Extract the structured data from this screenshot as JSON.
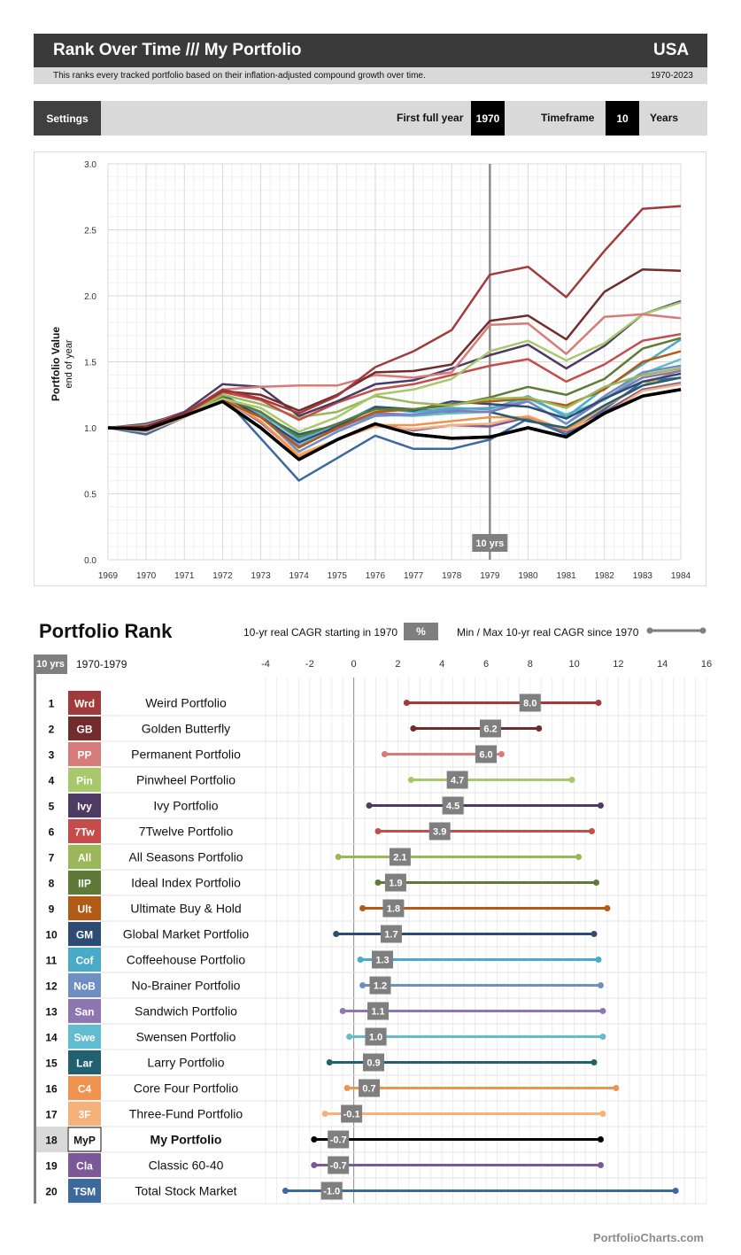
{
  "header": {
    "title": "Rank Over Time /// My Portfolio",
    "country": "USA",
    "subtitle": "This ranks every tracked portfolio based on their inflation-adjusted compound growth over time.",
    "years": "1970-2023"
  },
  "settings": {
    "button_label": "Settings",
    "first_year_label": "First full year",
    "first_year_value": "1970",
    "timeframe_label": "Timeframe",
    "timeframe_value": "10",
    "years_label": "Years"
  },
  "rank_section": {
    "title": "Portfolio Rank",
    "cagr_label": "10-yr real CAGR starting in 1970",
    "pct_badge": "%",
    "minmax_label": "Min / Max 10-yr real CAGR since 1970",
    "period_badge": "10 yrs",
    "period_range": "1970-1979"
  },
  "footer": "PortfolioCharts.com",
  "chart_data": [
    {
      "type": "line",
      "ylabel": "Portfolio Value",
      "ylabel_sub": "end of year",
      "ylim": [
        0,
        3.0
      ],
      "yticks": [
        "0.0",
        "0.5",
        "1.0",
        "1.5",
        "2.0",
        "2.5",
        "3.0"
      ],
      "x": [
        "1969",
        "1970",
        "1971",
        "1972",
        "1973",
        "1974",
        "1975",
        "1976",
        "1977",
        "1978",
        "1979",
        "1980",
        "1981",
        "1982",
        "1983",
        "1984"
      ],
      "marker": {
        "x": "1979",
        "label": "10 yrs"
      },
      "grid": true,
      "series": [
        {
          "name": "Wrd",
          "color": "#a13b3b",
          "width": 2.5,
          "values": [
            1.0,
            0.99,
            1.1,
            1.29,
            1.22,
            1.11,
            1.24,
            1.46,
            1.58,
            1.74,
            2.16,
            2.22,
            1.99,
            2.34,
            2.66,
            2.68
          ]
        },
        {
          "name": "GB",
          "color": "#732c2c",
          "width": 2.5,
          "values": [
            1.0,
            1.01,
            1.11,
            1.28,
            1.25,
            1.13,
            1.25,
            1.42,
            1.43,
            1.48,
            1.81,
            1.85,
            1.67,
            2.03,
            2.2,
            2.19
          ]
        },
        {
          "name": "PP",
          "color": "#d77a7a",
          "width": 2.5,
          "values": [
            1.0,
            1.02,
            1.11,
            1.29,
            1.31,
            1.32,
            1.32,
            1.4,
            1.38,
            1.42,
            1.78,
            1.79,
            1.56,
            1.84,
            1.86,
            1.83
          ]
        },
        {
          "name": "Pin",
          "color": "#a7c86b",
          "width": 2.5,
          "values": [
            1.0,
            0.99,
            1.09,
            1.22,
            1.15,
            0.97,
            1.08,
            1.25,
            1.29,
            1.37,
            1.58,
            1.66,
            1.51,
            1.64,
            1.86,
            1.95
          ]
        },
        {
          "name": "Ivy",
          "color": "#4e3a63",
          "width": 2.5,
          "values": [
            1.0,
            1.02,
            1.12,
            1.33,
            1.31,
            1.09,
            1.2,
            1.33,
            1.36,
            1.45,
            1.55,
            1.63,
            1.45,
            1.62,
            1.86,
            1.96
          ]
        },
        {
          "name": "7Tw",
          "color": "#c64b4b",
          "width": 2.5,
          "values": [
            1.0,
            1.0,
            1.1,
            1.27,
            1.21,
            1.06,
            1.19,
            1.29,
            1.33,
            1.4,
            1.47,
            1.52,
            1.35,
            1.48,
            1.66,
            1.71
          ]
        },
        {
          "name": "All",
          "color": "#9ab85a",
          "width": 2.5,
          "values": [
            1.0,
            1.0,
            1.09,
            1.25,
            1.18,
            1.08,
            1.12,
            1.24,
            1.19,
            1.17,
            1.22,
            1.23,
            1.15,
            1.31,
            1.4,
            1.45
          ]
        },
        {
          "name": "IIP",
          "color": "#5f7a36",
          "width": 2.5,
          "values": [
            1.0,
            1.02,
            1.1,
            1.23,
            1.12,
            0.93,
            1.03,
            1.14,
            1.14,
            1.17,
            1.23,
            1.31,
            1.25,
            1.37,
            1.6,
            1.68
          ]
        },
        {
          "name": "Ult",
          "color": "#b35a17",
          "width": 2.5,
          "values": [
            1.0,
            1.0,
            1.1,
            1.21,
            1.08,
            0.85,
            1.0,
            1.12,
            1.14,
            1.18,
            1.2,
            1.22,
            1.17,
            1.29,
            1.5,
            1.58
          ]
        },
        {
          "name": "GM",
          "color": "#2d4c75",
          "width": 2.5,
          "values": [
            1.0,
            0.98,
            1.09,
            1.25,
            1.08,
            0.89,
            1.01,
            1.15,
            1.13,
            1.2,
            1.18,
            1.16,
            1.07,
            1.22,
            1.35,
            1.41
          ]
        },
        {
          "name": "Cof",
          "color": "#4aaac9",
          "width": 2.5,
          "values": [
            1.0,
            1.01,
            1.1,
            1.23,
            1.12,
            0.91,
            1.03,
            1.15,
            1.12,
            1.15,
            1.14,
            1.24,
            1.08,
            1.3,
            1.48,
            1.67
          ]
        },
        {
          "name": "NoB",
          "color": "#6f8fc4",
          "width": 2.5,
          "values": [
            1.0,
            1.0,
            1.1,
            1.24,
            1.09,
            0.82,
            0.97,
            1.09,
            1.1,
            1.14,
            1.15,
            1.2,
            1.03,
            1.24,
            1.42,
            1.47
          ]
        },
        {
          "name": "San",
          "color": "#8e76b0",
          "width": 2.5,
          "values": [
            1.0,
            1.0,
            1.1,
            1.24,
            1.09,
            0.86,
            0.99,
            1.11,
            1.1,
            1.13,
            1.12,
            1.2,
            1.03,
            1.22,
            1.38,
            1.43
          ]
        },
        {
          "name": "Swe",
          "color": "#62bcd0",
          "width": 2.5,
          "values": [
            1.0,
            1.0,
            1.1,
            1.25,
            1.1,
            0.88,
            1.0,
            1.1,
            1.09,
            1.11,
            1.12,
            1.22,
            1.1,
            1.21,
            1.41,
            1.52
          ]
        },
        {
          "name": "Lar",
          "color": "#225f70",
          "width": 2.5,
          "values": [
            1.0,
            1.03,
            1.11,
            1.25,
            1.1,
            0.95,
            1.02,
            1.16,
            1.14,
            1.12,
            1.12,
            1.05,
            1.0,
            1.17,
            1.32,
            1.38
          ]
        },
        {
          "name": "C4",
          "color": "#f0934e",
          "width": 2.5,
          "values": [
            1.0,
            1.0,
            1.1,
            1.23,
            1.05,
            0.78,
            0.91,
            1.02,
            1.02,
            1.05,
            1.08,
            1.08,
            0.98,
            1.16,
            1.32,
            1.44
          ]
        },
        {
          "name": "3F",
          "color": "#f6b07a",
          "width": 2.5,
          "values": [
            1.0,
            0.97,
            1.08,
            1.22,
            1.05,
            0.8,
            0.91,
            1.01,
            0.99,
            1.02,
            1.03,
            1.09,
            0.98,
            1.1,
            1.28,
            1.33
          ]
        },
        {
          "name": "MyP",
          "color": "#000000",
          "width": 3.5,
          "values": [
            1.0,
            0.99,
            1.09,
            1.2,
            1.0,
            0.76,
            0.91,
            1.03,
            0.95,
            0.92,
            0.93,
            1.0,
            0.93,
            1.11,
            1.24,
            1.29
          ]
        },
        {
          "name": "Cla",
          "color": "#7c5896",
          "width": 2.5,
          "values": [
            1.0,
            0.98,
            1.08,
            1.22,
            1.04,
            0.79,
            0.91,
            1.03,
            0.98,
            1.02,
            1.01,
            1.08,
            0.97,
            1.12,
            1.29,
            1.34
          ]
        },
        {
          "name": "TSM",
          "color": "#3d6a9e",
          "width": 2.5,
          "values": [
            1.0,
            0.95,
            1.08,
            1.24,
            0.92,
            0.6,
            0.77,
            0.94,
            0.84,
            0.84,
            0.91,
            1.07,
            0.95,
            1.14,
            1.35,
            1.38
          ]
        }
      ]
    },
    {
      "type": "dumbbell",
      "xlim": [
        -4,
        16
      ],
      "xticks": [
        "-4",
        "-2",
        "0",
        "2",
        "4",
        "6",
        "8",
        "10",
        "12",
        "14",
        "16"
      ],
      "grid": true,
      "highlight_rank": 18,
      "rows": [
        {
          "rank": "1",
          "abbr": "Wrd",
          "name": "Weird Portfolio",
          "color": "#a13b3b",
          "value": 8.0,
          "min": 2.4,
          "max": 11.1
        },
        {
          "rank": "2",
          "abbr": "GB",
          "name": "Golden Butterfly",
          "color": "#732c2c",
          "value": 6.2,
          "min": 2.7,
          "max": 8.4
        },
        {
          "rank": "3",
          "abbr": "PP",
          "name": "Permanent Portfolio",
          "color": "#d77a7a",
          "value": 6.0,
          "min": 1.4,
          "max": 6.7
        },
        {
          "rank": "4",
          "abbr": "Pin",
          "name": "Pinwheel Portfolio",
          "color": "#a7c86b",
          "value": 4.7,
          "min": 2.6,
          "max": 9.9
        },
        {
          "rank": "5",
          "abbr": "Ivy",
          "name": "Ivy Portfolio",
          "color": "#4e3a63",
          "value": 4.5,
          "min": 0.7,
          "max": 11.2
        },
        {
          "rank": "6",
          "abbr": "7Tw",
          "name": "7Twelve Portfolio",
          "color": "#c64b4b",
          "value": 3.9,
          "min": 1.1,
          "max": 10.8
        },
        {
          "rank": "7",
          "abbr": "All",
          "name": "All Seasons Portfolio",
          "color": "#9ab85a",
          "value": 2.1,
          "min": -0.7,
          "max": 10.2
        },
        {
          "rank": "8",
          "abbr": "IIP",
          "name": "Ideal Index Portfolio",
          "color": "#5f7a36",
          "value": 1.9,
          "min": 1.1,
          "max": 11.0
        },
        {
          "rank": "9",
          "abbr": "Ult",
          "name": "Ultimate Buy & Hold",
          "color": "#b35a17",
          "value": 1.8,
          "min": 0.4,
          "max": 11.5
        },
        {
          "rank": "10",
          "abbr": "GM",
          "name": "Global Market Portfolio",
          "color": "#2d4c75",
          "value": 1.7,
          "min": -0.8,
          "max": 10.9
        },
        {
          "rank": "11",
          "abbr": "Cof",
          "name": "Coffeehouse Portfolio",
          "color": "#4aaac9",
          "value": 1.3,
          "min": 0.3,
          "max": 11.1
        },
        {
          "rank": "12",
          "abbr": "NoB",
          "name": "No-Brainer Portfolio",
          "color": "#6f8fc4",
          "value": 1.2,
          "min": 0.4,
          "max": 11.2
        },
        {
          "rank": "13",
          "abbr": "San",
          "name": "Sandwich Portfolio",
          "color": "#8e76b0",
          "value": 1.1,
          "min": -0.5,
          "max": 11.3
        },
        {
          "rank": "14",
          "abbr": "Swe",
          "name": "Swensen Portfolio",
          "color": "#62bcd0",
          "value": 1.0,
          "min": -0.2,
          "max": 11.3
        },
        {
          "rank": "15",
          "abbr": "Lar",
          "name": "Larry Portfolio",
          "color": "#225f70",
          "value": 0.9,
          "min": -1.1,
          "max": 10.9
        },
        {
          "rank": "16",
          "abbr": "C4",
          "name": "Core Four Portfolio",
          "color": "#f0934e",
          "value": 0.7,
          "min": -0.3,
          "max": 11.9
        },
        {
          "rank": "17",
          "abbr": "3F",
          "name": "Three-Fund Portfolio",
          "color": "#f6b07a",
          "value": -0.1,
          "min": -1.3,
          "max": 11.3
        },
        {
          "rank": "18",
          "abbr": "MyP",
          "name": "My Portfolio",
          "color": "#000000",
          "value": -0.7,
          "min": -1.8,
          "max": 11.2
        },
        {
          "rank": "19",
          "abbr": "Cla",
          "name": "Classic 60-40",
          "color": "#7c5896",
          "value": -0.7,
          "min": -1.8,
          "max": 11.2
        },
        {
          "rank": "20",
          "abbr": "TSM",
          "name": "Total Stock Market",
          "color": "#3d6a9e",
          "value": -1.0,
          "min": -3.1,
          "max": 14.6
        }
      ]
    }
  ]
}
